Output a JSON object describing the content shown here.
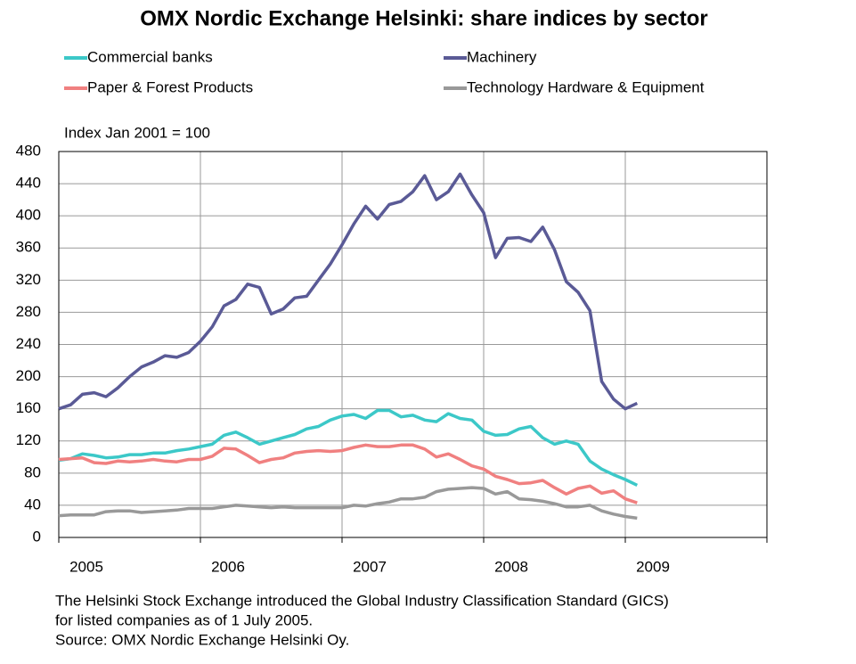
{
  "chart_data": {
    "type": "line",
    "title": "OMX Nordic Exchange Helsinki: share indices by sector",
    "y_axis_label": "Index Jan 2001 = 100",
    "notes": [
      "The Helsinki Stock Exchange introduced the Global Industry Classification Standard (GICS)",
      "for listed companies as of 1 July 2005.",
      "Source: OMX Nordic Exchange Helsinki Oy."
    ],
    "categories": [
      "2005",
      null,
      null,
      null,
      null,
      null,
      null,
      null,
      null,
      null,
      null,
      null,
      "2006",
      null,
      null,
      null,
      null,
      null,
      null,
      null,
      null,
      null,
      null,
      null,
      "2007",
      null,
      null,
      null,
      null,
      null,
      null,
      null,
      null,
      null,
      null,
      null,
      "2008",
      null,
      null,
      null,
      null,
      null,
      null,
      null,
      null,
      null,
      null,
      null,
      "2009",
      null,
      null,
      null,
      null,
      null,
      null,
      null,
      null,
      null,
      null,
      null
    ],
    "ylim": [
      0,
      480
    ],
    "yticks": [
      0,
      40,
      80,
      120,
      160,
      200,
      240,
      280,
      320,
      360,
      400,
      440,
      480
    ],
    "grid": true,
    "series": [
      {
        "name": "Commercial banks",
        "color": "#3cc8c8",
        "values": [
          96,
          98,
          104,
          102,
          99,
          100,
          103,
          103,
          105,
          105,
          108,
          110,
          113,
          116,
          127,
          131,
          124,
          116,
          120,
          124,
          128,
          135,
          138,
          146,
          151,
          153,
          148,
          158,
          158,
          150,
          152,
          146,
          144,
          154,
          148,
          146,
          132,
          127,
          128,
          135,
          138,
          124,
          116,
          120,
          116,
          95,
          85,
          78,
          72,
          65,
          null,
          null,
          null,
          null,
          null,
          null,
          null,
          null,
          null,
          null
        ]
      },
      {
        "name": "Machinery",
        "color": "#5a5a96",
        "values": [
          160,
          165,
          178,
          180,
          175,
          186,
          200,
          212,
          218,
          226,
          224,
          230,
          244,
          262,
          288,
          296,
          315,
          311,
          278,
          284,
          298,
          300,
          320,
          340,
          364,
          390,
          412,
          396,
          414,
          418,
          430,
          450,
          420,
          430,
          452,
          426,
          404,
          348,
          372,
          373,
          368,
          386,
          358,
          318,
          305,
          282,
          194,
          172,
          160,
          167,
          null,
          null,
          null,
          null,
          null,
          null,
          null,
          null,
          null,
          null
        ]
      },
      {
        "name": "Paper & Forest Products",
        "color": "#f08080",
        "values": [
          97,
          98,
          99,
          93,
          92,
          95,
          94,
          95,
          97,
          95,
          94,
          97,
          97,
          101,
          111,
          110,
          102,
          93,
          97,
          99,
          105,
          107,
          108,
          107,
          108,
          112,
          115,
          113,
          113,
          115,
          115,
          110,
          100,
          104,
          97,
          89,
          85,
          76,
          72,
          67,
          68,
          71,
          62,
          54,
          61,
          64,
          55,
          58,
          48,
          43,
          null,
          null,
          null,
          null,
          null,
          null,
          null,
          null,
          null,
          null
        ]
      },
      {
        "name": "Technology Hardware & Equipment",
        "color": "#999999",
        "values": [
          27,
          28,
          28,
          28,
          32,
          33,
          33,
          31,
          32,
          33,
          34,
          36,
          36,
          36,
          38,
          40,
          39,
          38,
          37,
          38,
          37,
          37,
          37,
          37,
          37,
          40,
          39,
          42,
          44,
          48,
          48,
          50,
          57,
          60,
          61,
          62,
          61,
          54,
          57,
          48,
          47,
          45,
          42,
          38,
          38,
          40,
          33,
          29,
          26,
          24,
          null,
          null,
          null,
          null,
          null,
          null,
          null,
          null,
          null,
          null
        ]
      }
    ]
  }
}
